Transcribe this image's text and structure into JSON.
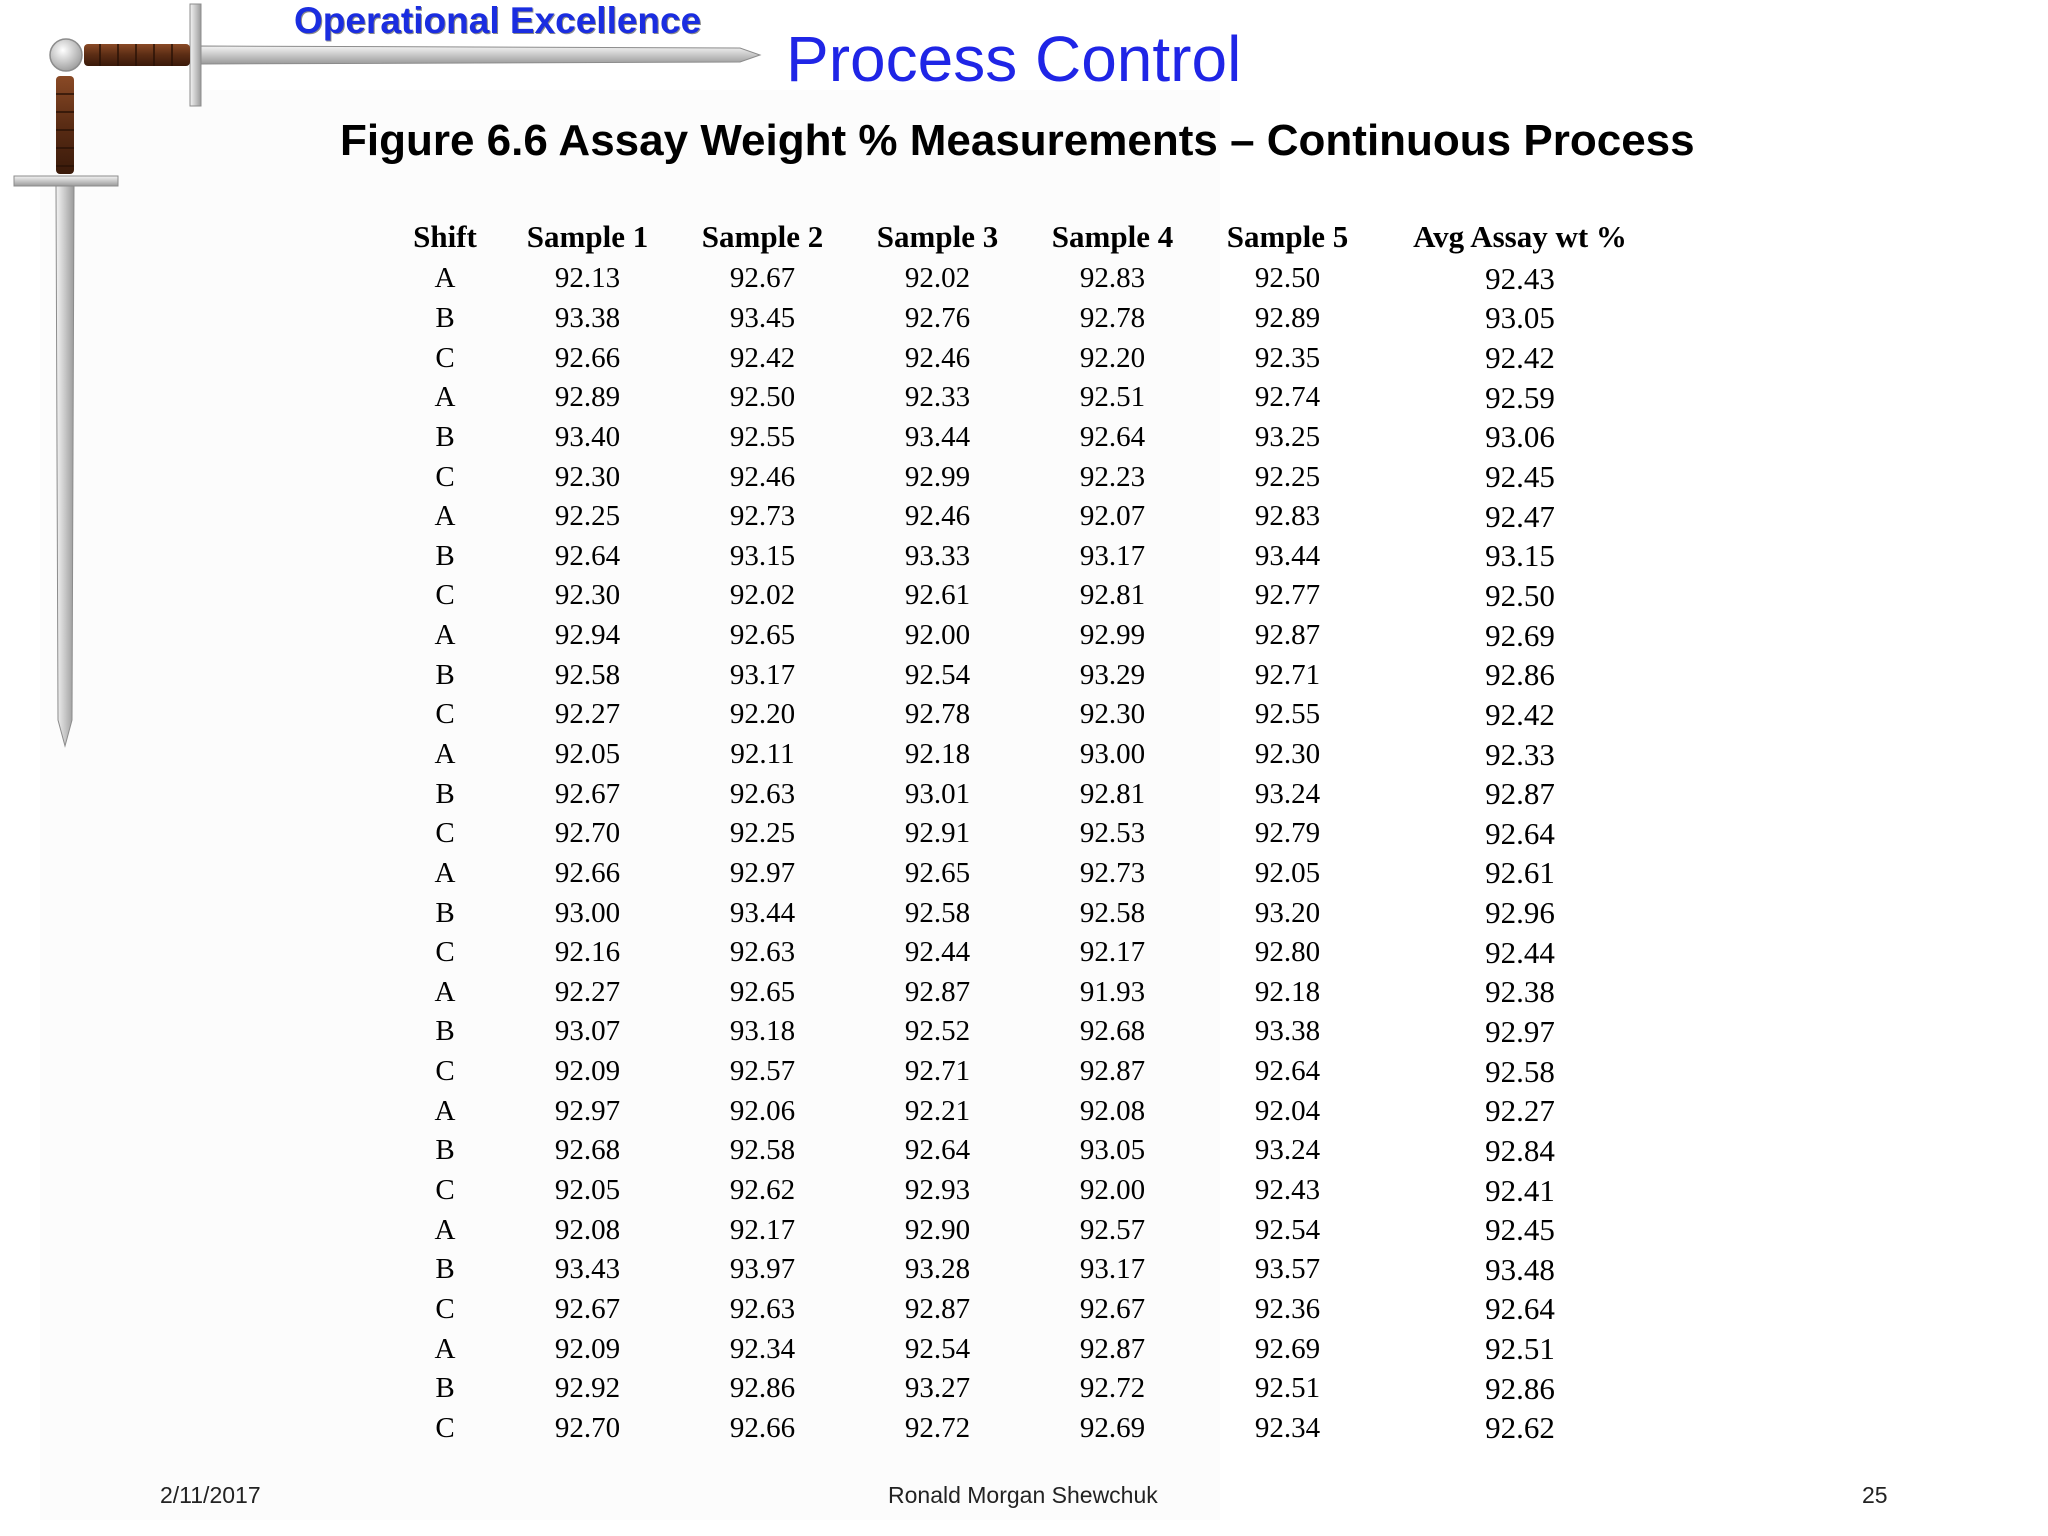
{
  "header": {
    "brand": "Operational Excellence",
    "title": "Process Control",
    "subtitle": "Figure 6.6  Assay Weight % Measurements – Continuous Process"
  },
  "table": {
    "headers": [
      "Shift",
      "Sample 1",
      "Sample 2",
      "Sample 3",
      "Sample 4",
      "Sample 5",
      "Avg Assay wt %"
    ],
    "rows": [
      [
        "A",
        "92.13",
        "92.67",
        "92.02",
        "92.83",
        "92.50",
        "92.43"
      ],
      [
        "B",
        "93.38",
        "93.45",
        "92.76",
        "92.78",
        "92.89",
        "93.05"
      ],
      [
        "C",
        "92.66",
        "92.42",
        "92.46",
        "92.20",
        "92.35",
        "92.42"
      ],
      [
        "A",
        "92.89",
        "92.50",
        "92.33",
        "92.51",
        "92.74",
        "92.59"
      ],
      [
        "B",
        "93.40",
        "92.55",
        "93.44",
        "92.64",
        "93.25",
        "93.06"
      ],
      [
        "C",
        "92.30",
        "92.46",
        "92.99",
        "92.23",
        "92.25",
        "92.45"
      ],
      [
        "A",
        "92.25",
        "92.73",
        "92.46",
        "92.07",
        "92.83",
        "92.47"
      ],
      [
        "B",
        "92.64",
        "93.15",
        "93.33",
        "93.17",
        "93.44",
        "93.15"
      ],
      [
        "C",
        "92.30",
        "92.02",
        "92.61",
        "92.81",
        "92.77",
        "92.50"
      ],
      [
        "A",
        "92.94",
        "92.65",
        "92.00",
        "92.99",
        "92.87",
        "92.69"
      ],
      [
        "B",
        "92.58",
        "93.17",
        "92.54",
        "93.29",
        "92.71",
        "92.86"
      ],
      [
        "C",
        "92.27",
        "92.20",
        "92.78",
        "92.30",
        "92.55",
        "92.42"
      ],
      [
        "A",
        "92.05",
        "92.11",
        "92.18",
        "93.00",
        "92.30",
        "92.33"
      ],
      [
        "B",
        "92.67",
        "92.63",
        "93.01",
        "92.81",
        "93.24",
        "92.87"
      ],
      [
        "C",
        "92.70",
        "92.25",
        "92.91",
        "92.53",
        "92.79",
        "92.64"
      ],
      [
        "A",
        "92.66",
        "92.97",
        "92.65",
        "92.73",
        "92.05",
        "92.61"
      ],
      [
        "B",
        "93.00",
        "93.44",
        "92.58",
        "92.58",
        "93.20",
        "92.96"
      ],
      [
        "C",
        "92.16",
        "92.63",
        "92.44",
        "92.17",
        "92.80",
        "92.44"
      ],
      [
        "A",
        "92.27",
        "92.65",
        "92.87",
        "91.93",
        "92.18",
        "92.38"
      ],
      [
        "B",
        "93.07",
        "93.18",
        "92.52",
        "92.68",
        "93.38",
        "92.97"
      ],
      [
        "C",
        "92.09",
        "92.57",
        "92.71",
        "92.87",
        "92.64",
        "92.58"
      ],
      [
        "A",
        "92.97",
        "92.06",
        "92.21",
        "92.08",
        "92.04",
        "92.27"
      ],
      [
        "B",
        "92.68",
        "92.58",
        "92.64",
        "93.05",
        "93.24",
        "92.84"
      ],
      [
        "C",
        "92.05",
        "92.62",
        "92.93",
        "92.00",
        "92.43",
        "92.41"
      ],
      [
        "A",
        "92.08",
        "92.17",
        "92.90",
        "92.57",
        "92.54",
        "92.45"
      ],
      [
        "B",
        "93.43",
        "93.97",
        "93.28",
        "93.17",
        "93.57",
        "93.48"
      ],
      [
        "C",
        "92.67",
        "92.63",
        "92.87",
        "92.67",
        "92.36",
        "92.64"
      ],
      [
        "A",
        "92.09",
        "92.34",
        "92.54",
        "92.87",
        "92.69",
        "92.51"
      ],
      [
        "B",
        "92.92",
        "92.86",
        "93.27",
        "92.72",
        "92.51",
        "92.86"
      ],
      [
        "C",
        "92.70",
        "92.66",
        "92.72",
        "92.69",
        "92.34",
        "92.62"
      ]
    ]
  },
  "footer": {
    "date": "2/11/2017",
    "author": "Ronald Morgan Shewchuk",
    "page": "25"
  },
  "icons": {
    "logo": "crossed-swords-icon"
  },
  "colors": {
    "title": "#1f25e6",
    "brand": "#1a2de0",
    "grip": "#6b3a1f"
  }
}
